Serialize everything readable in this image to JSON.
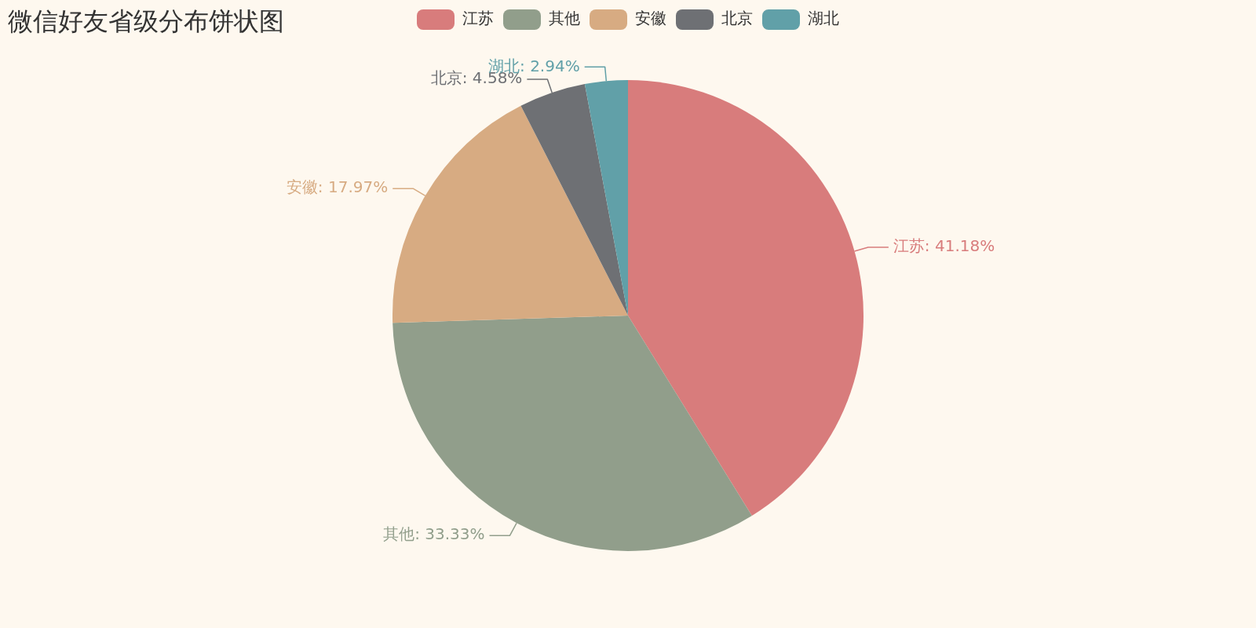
{
  "chart_data": {
    "type": "pie",
    "title": "微信好友省级分布饼状图",
    "categories": [
      "江苏",
      "其他",
      "安徽",
      "北京",
      "湖北"
    ],
    "values": [
      41.18,
      33.33,
      17.97,
      4.58,
      2.94
    ],
    "colors": [
      "#d87c7c",
      "#919e8b",
      "#d7ab82",
      "#6e7074",
      "#61a0a8"
    ],
    "legend": "top",
    "value_labels": [
      "江苏: 41.18%",
      "其他: 33.33%",
      "安徽: 17.97%",
      "北京: 4.58%",
      "湖北: 2.94%"
    ]
  }
}
